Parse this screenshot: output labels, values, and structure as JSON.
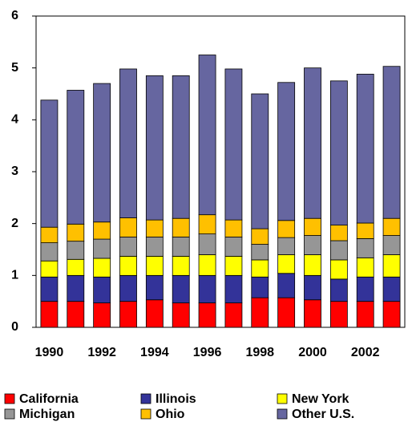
{
  "chart_data": {
    "type": "stacked_bar",
    "categories": [
      "1990",
      null,
      "1992",
      null,
      "1994",
      null,
      "1996",
      null,
      "1998",
      null,
      "2000",
      null,
      "2002",
      null
    ],
    "series": [
      {
        "name": "California",
        "color": "#ff0000",
        "values": [
          0.5,
          0.5,
          0.47,
          0.5,
          0.53,
          0.47,
          0.47,
          0.47,
          0.57,
          0.57,
          0.53,
          0.5,
          0.5,
          0.5
        ]
      },
      {
        "name": "Illinois",
        "color": "#333399",
        "values": [
          0.47,
          0.5,
          0.5,
          0.5,
          0.47,
          0.53,
          0.53,
          0.53,
          0.4,
          0.47,
          0.47,
          0.43,
          0.47,
          0.47
        ]
      },
      {
        "name": "New York",
        "color": "#ffff00",
        "values": [
          0.31,
          0.31,
          0.36,
          0.37,
          0.37,
          0.37,
          0.4,
          0.37,
          0.33,
          0.36,
          0.4,
          0.37,
          0.37,
          0.43
        ]
      },
      {
        "name": "Michigan",
        "color": "#969696",
        "values": [
          0.35,
          0.35,
          0.37,
          0.37,
          0.37,
          0.37,
          0.4,
          0.37,
          0.3,
          0.33,
          0.37,
          0.37,
          0.37,
          0.37
        ]
      },
      {
        "name": "Ohio",
        "color": "#ffc000",
        "values": [
          0.3,
          0.33,
          0.33,
          0.37,
          0.33,
          0.36,
          0.37,
          0.33,
          0.3,
          0.33,
          0.33,
          0.3,
          0.3,
          0.33
        ]
      },
      {
        "name": "Other U.S.",
        "color": "#6666a0",
        "values": [
          2.45,
          2.58,
          2.67,
          2.87,
          2.78,
          2.75,
          3.08,
          2.91,
          2.6,
          2.66,
          2.9,
          2.78,
          2.87,
          2.93
        ]
      }
    ],
    "ylim": [
      0,
      6
    ],
    "yticks": [
      0,
      1,
      2,
      3,
      4,
      5,
      6
    ],
    "grid": false,
    "legend": "bottom"
  }
}
